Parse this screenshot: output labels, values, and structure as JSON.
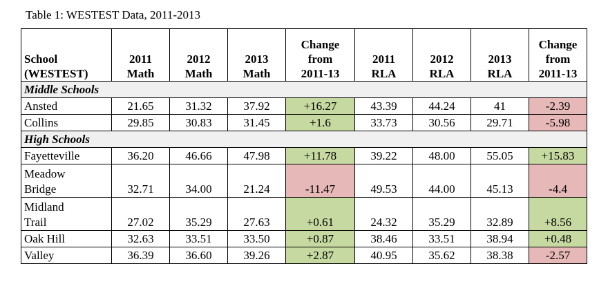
{
  "caption": "Table 1:  WESTEST Data, 2011-2013",
  "headers": [
    [
      "School",
      "(WESTEST)"
    ],
    [
      "2011",
      "Math"
    ],
    [
      "2012",
      "Math"
    ],
    [
      "2013",
      "Math"
    ],
    [
      "Change",
      "from",
      "2011-13"
    ],
    [
      "2011",
      "RLA"
    ],
    [
      "2012",
      "RLA"
    ],
    [
      "2013",
      "RLA"
    ],
    [
      "Change",
      "from",
      "2011-13"
    ]
  ],
  "sections": [
    {
      "title": "Middle Schools",
      "rows": [
        {
          "name": [
            "Ansted"
          ],
          "cells": [
            "21.65",
            "31.32",
            "37.92",
            "+16.27",
            "43.39",
            "44.24",
            "41",
            "-2.39"
          ],
          "math_change": "pos",
          "rla_change": "neg"
        },
        {
          "name": [
            "Collins"
          ],
          "cells": [
            "29.85",
            "30.83",
            "31.45",
            "+1.6",
            "33.73",
            "30.56",
            "29.71",
            "-5.98"
          ],
          "math_change": "pos",
          "rla_change": "neg"
        }
      ]
    },
    {
      "title": "High Schools",
      "rows": [
        {
          "name": [
            "Fayetteville"
          ],
          "cells": [
            "36.20",
            "46.66",
            "47.98",
            "+11.78",
            "39.22",
            "48.00",
            "55.05",
            "+15.83"
          ],
          "math_change": "pos",
          "rla_change": "pos"
        },
        {
          "name": [
            "Meadow",
            "Bridge"
          ],
          "cells": [
            "32.71",
            "34.00",
            "21.24",
            "-11.47",
            "49.53",
            "44.00",
            "45.13",
            "-4.4"
          ],
          "math_change": "neg",
          "rla_change": "neg"
        },
        {
          "name": [
            "Midland",
            "Trail"
          ],
          "cells": [
            "27.02",
            "35.29",
            "27.63",
            "+0.61",
            "24.32",
            "35.29",
            "32.89",
            "+8.56"
          ],
          "math_change": "pos",
          "rla_change": "pos"
        },
        {
          "name": [
            "Oak Hill"
          ],
          "cells": [
            "32.63",
            "33.51",
            "33.50",
            "+0.87",
            "38.46",
            "33.51",
            "38.94",
            "+0.48"
          ],
          "math_change": "pos",
          "rla_change": "pos"
        },
        {
          "name": [
            "Valley"
          ],
          "cells": [
            "36.39",
            "36.60",
            "39.26",
            "+2.87",
            "40.95",
            "35.62",
            "38.38",
            "-2.57"
          ],
          "math_change": "pos",
          "rla_change": "neg"
        }
      ]
    }
  ],
  "colors": {
    "positive": "#c6d9a0",
    "negative": "#e6b8b7",
    "section_bg": "#f0f0f0"
  }
}
